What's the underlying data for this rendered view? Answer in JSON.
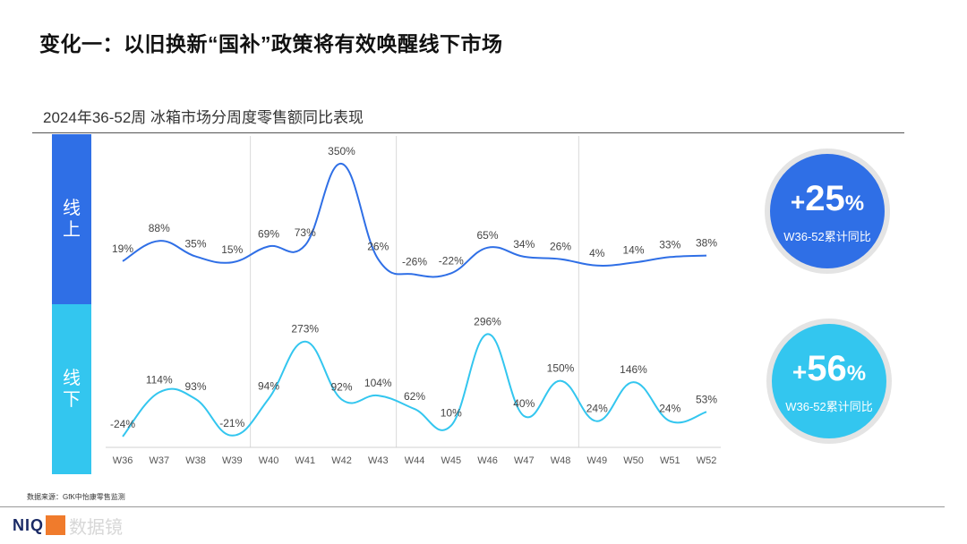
{
  "header": {
    "title": "变化一：以旧换新“国补”政策将有效唤醒线下市场"
  },
  "labels": {
    "online": "线上",
    "offline": "线下"
  },
  "summary": {
    "online": {
      "value": "25",
      "sign": "+",
      "pct": "%",
      "caption": "W36-52累计同比"
    },
    "offline": {
      "value": "56",
      "sign": "+",
      "pct": "%",
      "caption": "W36-52累计同比"
    }
  },
  "footer": {
    "source": "数据来源：GfK中怡康零售监测",
    "logo": "NIQ",
    "watermark": "数据镜"
  },
  "colors": {
    "online": "#2f6fe6",
    "offline": "#33c6ef"
  },
  "chart_data": {
    "type": "line",
    "title": "2024年36-52周 冰箱市场分周度零售额同比表现",
    "categories": [
      "W36",
      "W37",
      "W38",
      "W39",
      "W40",
      "W41",
      "W42",
      "W43",
      "W44",
      "W45",
      "W46",
      "W47",
      "W48",
      "W49",
      "W50",
      "W51",
      "W52"
    ],
    "series": [
      {
        "name": "线上",
        "values": [
          19,
          88,
          35,
          15,
          69,
          73,
          350,
          26,
          -26,
          -22,
          65,
          34,
          26,
          4,
          14,
          33,
          38
        ],
        "labels": [
          "19%",
          "88%",
          "35%",
          "15%",
          "69%",
          "73%",
          "350%",
          "26%",
          "-26%",
          "-22%",
          "65%",
          "34%",
          "26%",
          "4%",
          "14%",
          "33%",
          "38%"
        ]
      },
      {
        "name": "线下",
        "values": [
          -24,
          114,
          93,
          -21,
          94,
          273,
          92,
          104,
          62,
          10,
          296,
          40,
          150,
          24,
          146,
          24,
          53
        ],
        "labels": [
          "-24%",
          "114%",
          "93%",
          "-21%",
          "94%",
          "273%",
          "92%",
          "104%",
          "62%",
          "10%",
          "296%",
          "40%",
          "150%",
          "24%",
          "146%",
          "24%",
          "53%"
        ]
      }
    ],
    "grid_after": [
      "W39",
      "W43",
      "W48"
    ],
    "legend": "none"
  }
}
